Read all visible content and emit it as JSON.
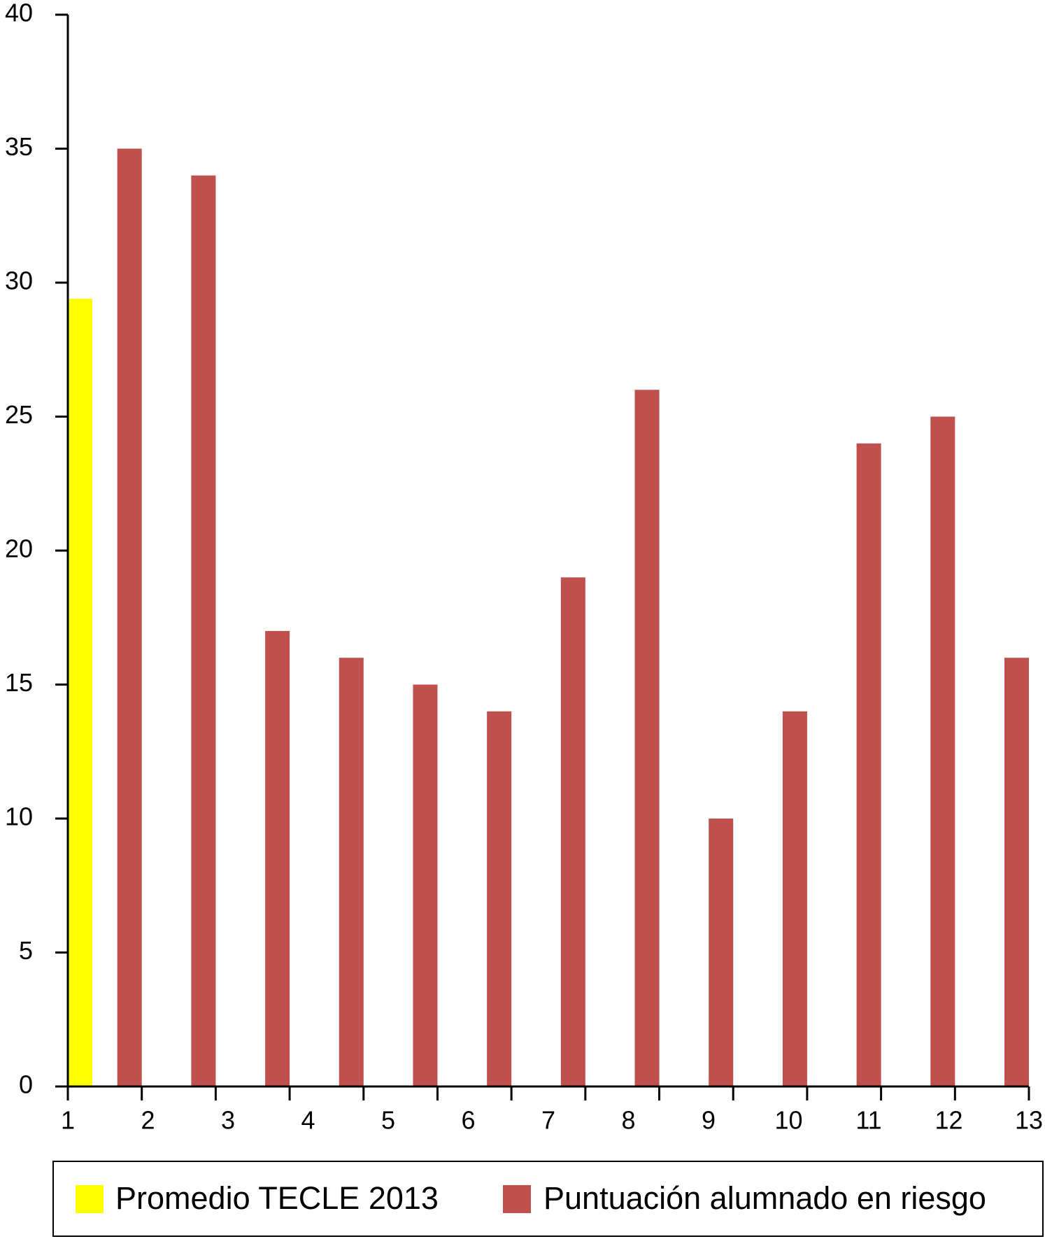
{
  "chart_data": {
    "type": "bar",
    "categories": [
      "1",
      "2",
      "3",
      "4",
      "5",
      "6",
      "7",
      "8",
      "9",
      "10",
      "11",
      "12",
      "13"
    ],
    "series": [
      {
        "name": "Promedio TECLE 2013",
        "color": "#ffff00",
        "values": [
          29.4,
          null,
          null,
          null,
          null,
          null,
          null,
          null,
          null,
          null,
          null,
          null,
          null
        ]
      },
      {
        "name": "Puntuación alumnado en riesgo",
        "color": "#c0504d",
        "values": [
          35,
          34,
          17,
          16,
          15,
          14,
          19,
          26,
          10,
          14,
          24,
          25,
          16
        ]
      }
    ],
    "ylim": [
      0,
      40
    ],
    "yticks": [
      0,
      5,
      10,
      15,
      20,
      25,
      30,
      35,
      40
    ],
    "grid": false,
    "legend": "bottom"
  }
}
